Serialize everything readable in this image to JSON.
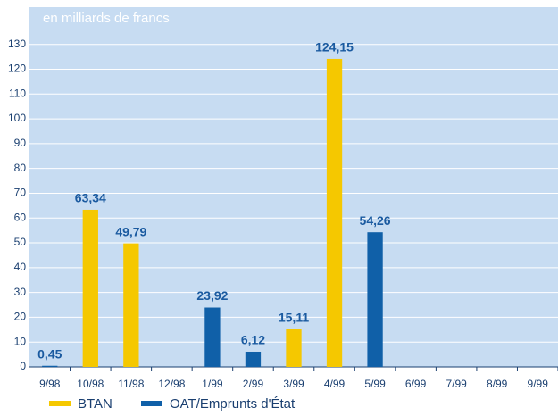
{
  "chart_data": {
    "type": "bar",
    "title": "en milliards de francs",
    "categories": [
      "9/98",
      "10/98",
      "11/98",
      "12/98",
      "1/99",
      "2/99",
      "3/99",
      "4/99",
      "5/99",
      "6/99",
      "7/99",
      "8/99",
      "9/99"
    ],
    "series": [
      {
        "name": "BTAN",
        "color": "#f5c800",
        "values": [
          null,
          63.34,
          49.79,
          null,
          null,
          null,
          15.11,
          124.15,
          null,
          null,
          null,
          null,
          null
        ],
        "value_labels": [
          null,
          "63,34",
          "49,79",
          null,
          null,
          null,
          "15,11",
          "124,15",
          null,
          null,
          null,
          null,
          null
        ]
      },
      {
        "name": "OAT/Emprunts d'État",
        "color": "#1060a8",
        "values": [
          0.45,
          null,
          null,
          null,
          23.92,
          6.12,
          null,
          null,
          54.26,
          null,
          null,
          null,
          null
        ],
        "value_labels": [
          "0,45",
          null,
          null,
          null,
          "23,92",
          "6,12",
          null,
          null,
          "54,26",
          null,
          null,
          null,
          null
        ]
      }
    ],
    "ylim": [
      0,
      145
    ],
    "yticks": [
      0,
      10,
      20,
      30,
      40,
      50,
      60,
      70,
      80,
      90,
      100,
      110,
      120,
      130
    ],
    "grid": true
  }
}
